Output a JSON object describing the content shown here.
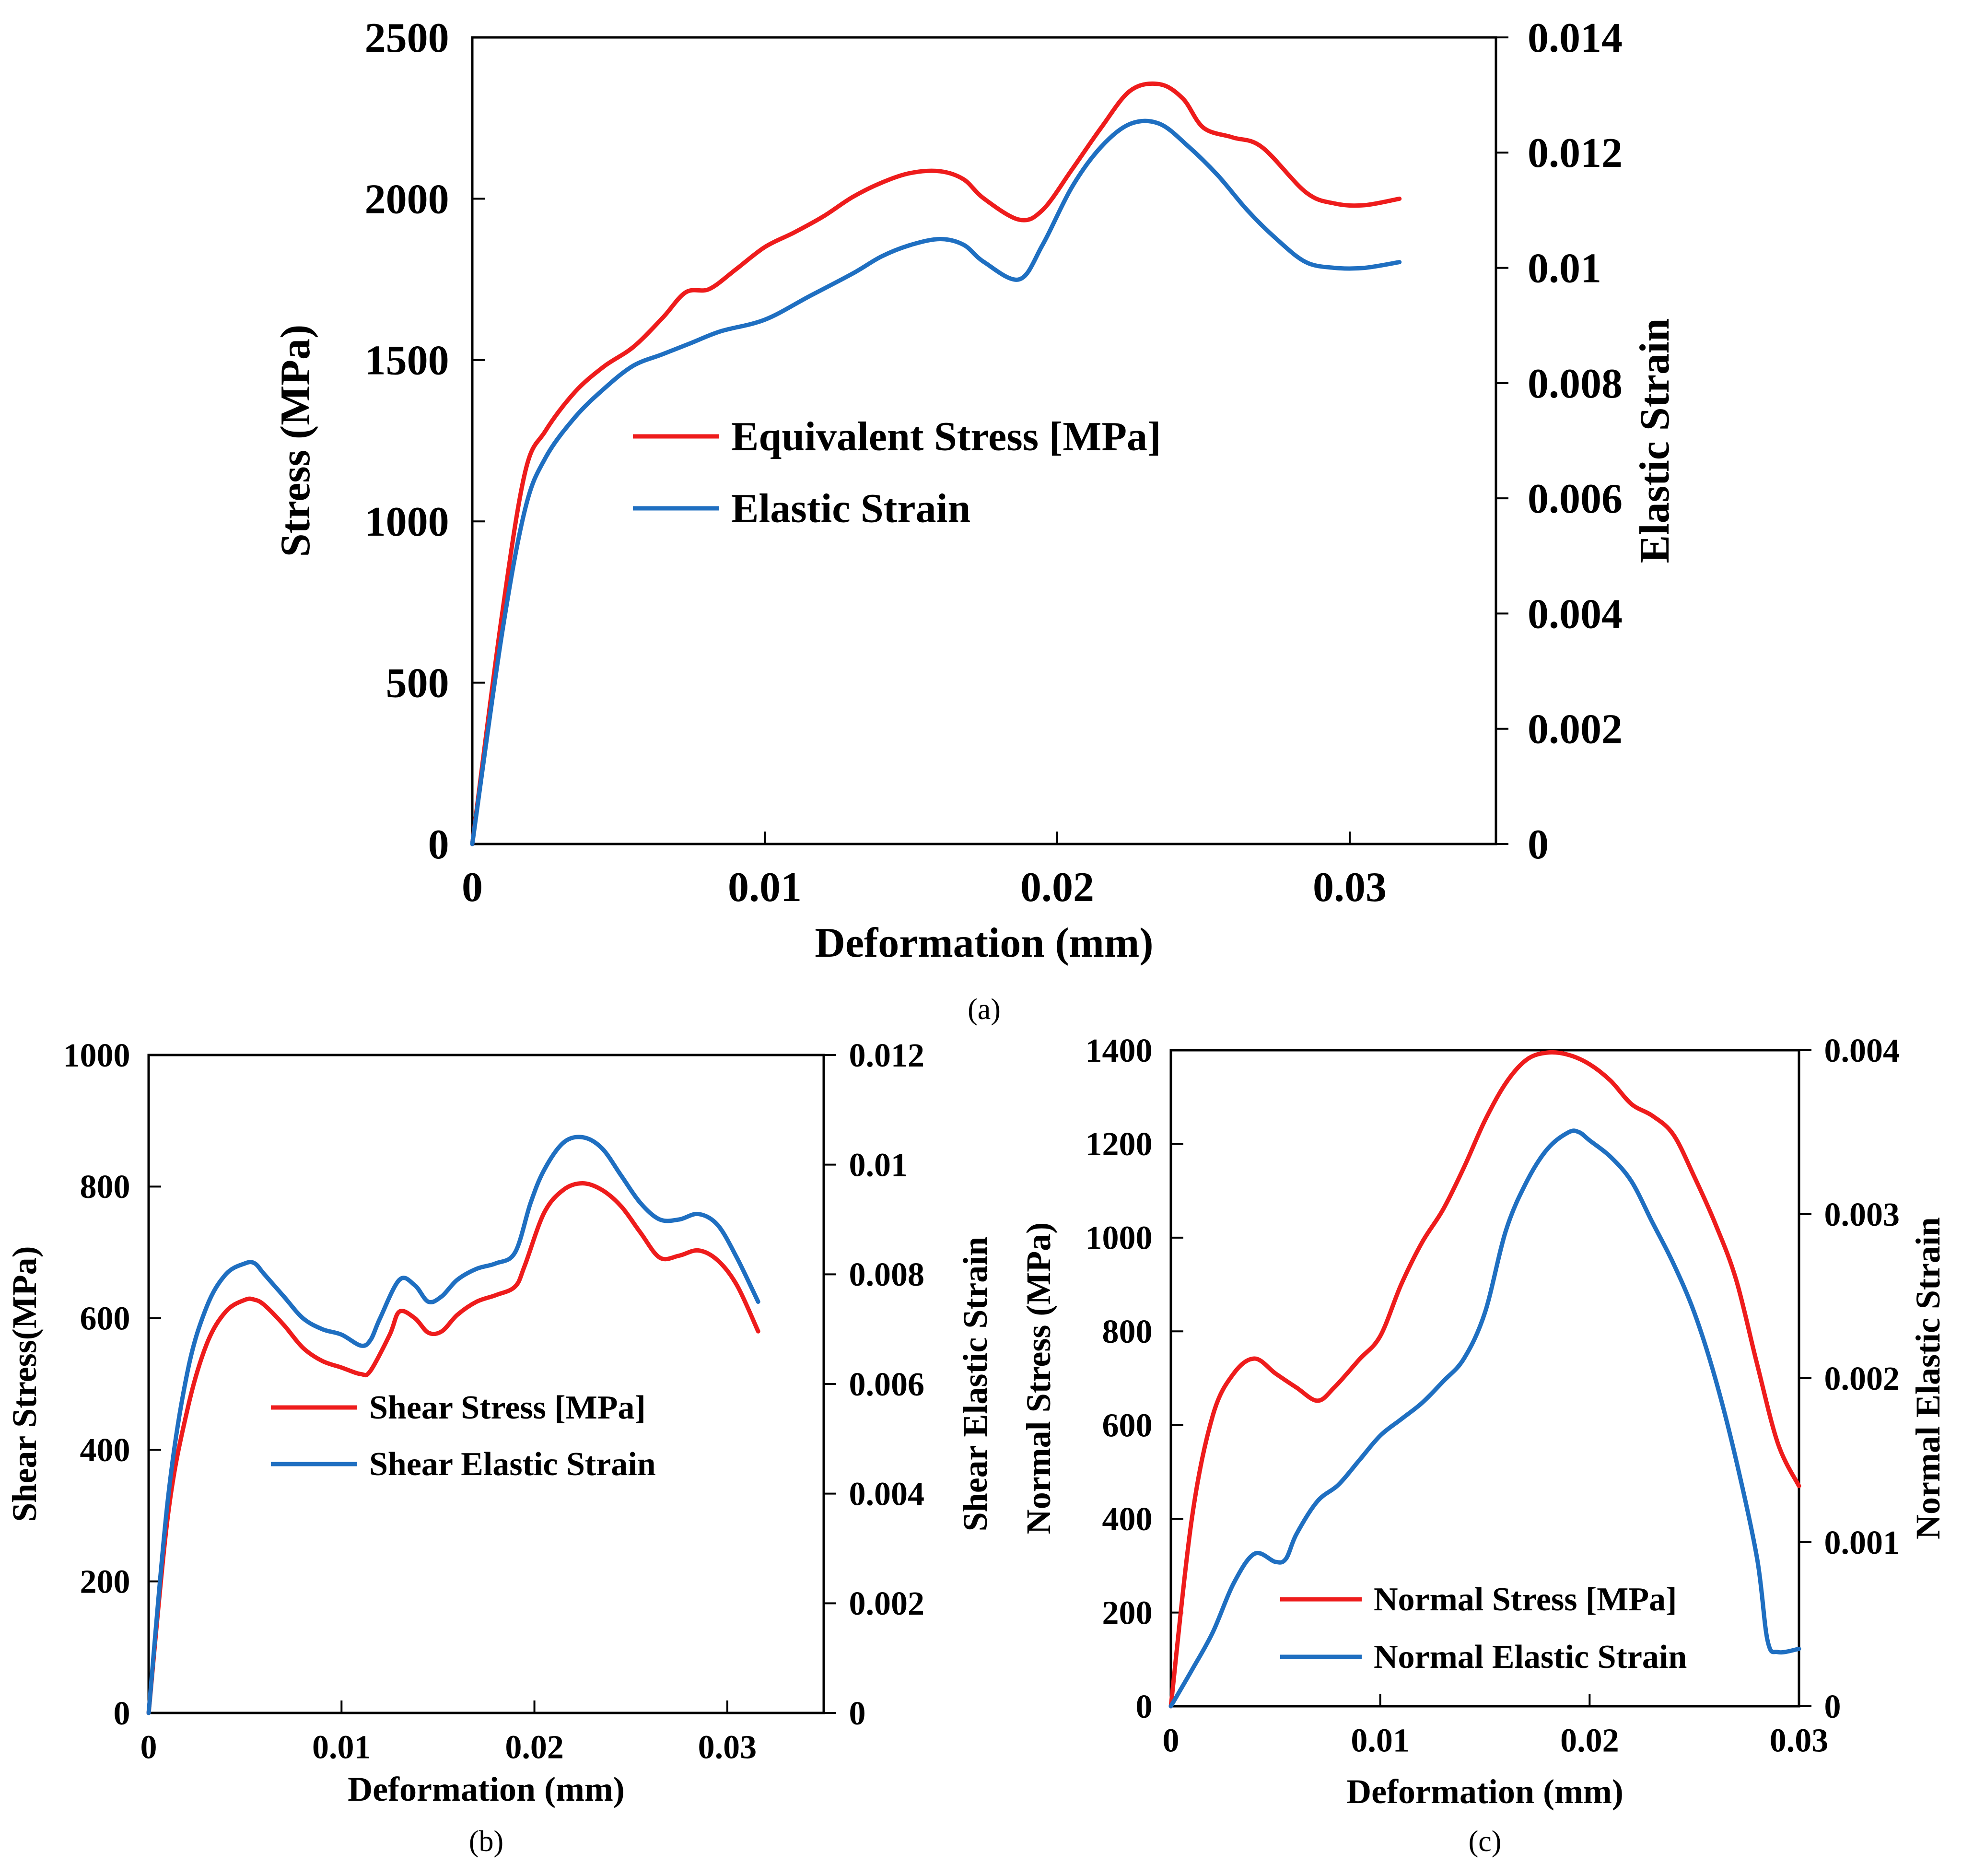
{
  "chart_data": [
    {
      "id": "a",
      "type": "line",
      "caption": "(a)",
      "xlabel": "Deformation (mm)",
      "ylabel": "Stress (MPa)",
      "y2label": "Elastic Strain",
      "xlim": [
        0,
        0.035
      ],
      "ylim": [
        0,
        2500
      ],
      "y2lim": [
        0,
        0.014
      ],
      "xticks": [
        0,
        0.01,
        0.02,
        0.03
      ],
      "xtick_labels": [
        "0",
        "0.01",
        "0.02",
        "0.03"
      ],
      "yticks": [
        0,
        500,
        1000,
        1500,
        2000,
        2500
      ],
      "ytick_labels": [
        "0",
        "500",
        "1000",
        "1500",
        "2000",
        "2500"
      ],
      "y2ticks": [
        0,
        0.002,
        0.004,
        0.006,
        0.008,
        0.01,
        0.012,
        0.014
      ],
      "y2tick_labels": [
        "0",
        "0.002",
        "0.004",
        "0.006",
        "0.008",
        "0.01",
        "0.012",
        "0.014"
      ],
      "legend_position": "center",
      "series": [
        {
          "name": "Equivalent Stress [MPa]",
          "axis": "left",
          "color": "#ee1c1c",
          "points": [
            [
              0,
              0
            ],
            [
              0.001,
              700
            ],
            [
              0.0018,
              1150
            ],
            [
              0.0025,
              1280
            ],
            [
              0.0035,
              1400
            ],
            [
              0.0045,
              1480
            ],
            [
              0.0055,
              1540
            ],
            [
              0.0065,
              1630
            ],
            [
              0.0073,
              1710
            ],
            [
              0.0081,
              1720
            ],
            [
              0.009,
              1780
            ],
            [
              0.01,
              1850
            ],
            [
              0.011,
              1895
            ],
            [
              0.012,
              1945
            ],
            [
              0.013,
              2005
            ],
            [
              0.014,
              2050
            ],
            [
              0.015,
              2080
            ],
            [
              0.016,
              2085
            ],
            [
              0.0168,
              2060
            ],
            [
              0.0175,
              2000
            ],
            [
              0.0187,
              1935
            ],
            [
              0.0195,
              1965
            ],
            [
              0.0205,
              2090
            ],
            [
              0.0215,
              2220
            ],
            [
              0.0225,
              2335
            ],
            [
              0.0235,
              2355
            ],
            [
              0.0243,
              2310
            ],
            [
              0.025,
              2220
            ],
            [
              0.026,
              2190
            ],
            [
              0.027,
              2160
            ],
            [
              0.0285,
              2020
            ],
            [
              0.0295,
              1985
            ],
            [
              0.0305,
              1980
            ],
            [
              0.0317,
              2000
            ]
          ]
        },
        {
          "name": "Elastic Strain",
          "axis": "right",
          "color": "#1f6fc1",
          "points": [
            [
              0,
              0
            ],
            [
              0.001,
              0.0036
            ],
            [
              0.0018,
              0.0058
            ],
            [
              0.0025,
              0.0067
            ],
            [
              0.0035,
              0.0074
            ],
            [
              0.0045,
              0.0079
            ],
            [
              0.0055,
              0.0083
            ],
            [
              0.0065,
              0.0085
            ],
            [
              0.0075,
              0.0087
            ],
            [
              0.0085,
              0.0089
            ],
            [
              0.01,
              0.0091
            ],
            [
              0.0115,
              0.0095
            ],
            [
              0.013,
              0.0099
            ],
            [
              0.014,
              0.0102
            ],
            [
              0.015,
              0.0104
            ],
            [
              0.016,
              0.0105
            ],
            [
              0.0168,
              0.0104
            ],
            [
              0.0175,
              0.0101
            ],
            [
              0.0187,
              0.0098
            ],
            [
              0.0195,
              0.0104
            ],
            [
              0.0205,
              0.0114
            ],
            [
              0.0215,
              0.0121
            ],
            [
              0.0225,
              0.0125
            ],
            [
              0.0235,
              0.0125
            ],
            [
              0.0245,
              0.0121
            ],
            [
              0.0255,
              0.0116
            ],
            [
              0.0265,
              0.011
            ],
            [
              0.0275,
              0.0105
            ],
            [
              0.0285,
              0.0101
            ],
            [
              0.0295,
              0.01
            ],
            [
              0.0305,
              0.01
            ],
            [
              0.0317,
              0.0101
            ]
          ]
        }
      ]
    },
    {
      "id": "b",
      "type": "line",
      "caption": "(b)",
      "xlabel": "Deformation (mm)",
      "ylabel": "Shear Stress(MPa)",
      "y2label": "Shear Elastic Strain",
      "xlim": [
        0,
        0.035
      ],
      "ylim": [
        0,
        1000
      ],
      "y2lim": [
        0,
        0.012
      ],
      "xticks": [
        0,
        0.01,
        0.02,
        0.03
      ],
      "xtick_labels": [
        "0",
        "0.01",
        "0.02",
        "0.03"
      ],
      "yticks": [
        0,
        200,
        400,
        600,
        800,
        1000
      ],
      "ytick_labels": [
        "0",
        "200",
        "400",
        "600",
        "800",
        "1000"
      ],
      "y2ticks": [
        0,
        0.002,
        0.004,
        0.006,
        0.008,
        0.01,
        0.012
      ],
      "y2tick_labels": [
        "0",
        "0.002",
        "0.004",
        "0.006",
        "0.008",
        "0.01",
        "0.012"
      ],
      "legend_position": "center",
      "series": [
        {
          "name": "Shear Stress [MPa]",
          "axis": "left",
          "color": "#ee1c1c",
          "points": [
            [
              0,
              0
            ],
            [
              0.001,
              300
            ],
            [
              0.002,
              460
            ],
            [
              0.003,
              560
            ],
            [
              0.004,
              610
            ],
            [
              0.005,
              628
            ],
            [
              0.0055,
              628
            ],
            [
              0.006,
              620
            ],
            [
              0.007,
              590
            ],
            [
              0.008,
              555
            ],
            [
              0.009,
              535
            ],
            [
              0.01,
              525
            ],
            [
              0.011,
              515
            ],
            [
              0.0115,
              520
            ],
            [
              0.0125,
              575
            ],
            [
              0.013,
              610
            ],
            [
              0.0138,
              600
            ],
            [
              0.0145,
              578
            ],
            [
              0.0152,
              580
            ],
            [
              0.016,
              605
            ],
            [
              0.017,
              625
            ],
            [
              0.018,
              635
            ],
            [
              0.019,
              648
            ],
            [
              0.0195,
              680
            ],
            [
              0.0205,
              760
            ],
            [
              0.0215,
              795
            ],
            [
              0.0225,
              805
            ],
            [
              0.0235,
              795
            ],
            [
              0.0245,
              770
            ],
            [
              0.0255,
              730
            ],
            [
              0.0265,
              692
            ],
            [
              0.0275,
              695
            ],
            [
              0.0285,
              703
            ],
            [
              0.0295,
              688
            ],
            [
              0.0305,
              650
            ],
            [
              0.0316,
              580
            ]
          ]
        },
        {
          "name": "Shear Elastic Strain",
          "axis": "right",
          "color": "#1f6fc1",
          "points": [
            [
              0,
              0
            ],
            [
              0.001,
              0.0039
            ],
            [
              0.002,
              0.0062
            ],
            [
              0.003,
              0.0074
            ],
            [
              0.004,
              0.008
            ],
            [
              0.005,
              0.0082
            ],
            [
              0.0055,
              0.0082
            ],
            [
              0.006,
              0.008
            ],
            [
              0.007,
              0.0076
            ],
            [
              0.008,
              0.0072
            ],
            [
              0.009,
              0.007
            ],
            [
              0.01,
              0.0069
            ],
            [
              0.011,
              0.0067
            ],
            [
              0.0115,
              0.0068
            ],
            [
              0.012,
              0.0072
            ],
            [
              0.013,
              0.0079
            ],
            [
              0.0138,
              0.0078
            ],
            [
              0.0145,
              0.0075
            ],
            [
              0.0152,
              0.0076
            ],
            [
              0.016,
              0.0079
            ],
            [
              0.017,
              0.0081
            ],
            [
              0.018,
              0.0082
            ],
            [
              0.019,
              0.0084
            ],
            [
              0.0198,
              0.0093
            ],
            [
              0.0205,
              0.0099
            ],
            [
              0.0215,
              0.0104
            ],
            [
              0.0225,
              0.0105
            ],
            [
              0.0235,
              0.0103
            ],
            [
              0.0245,
              0.0098
            ],
            [
              0.0255,
              0.0093
            ],
            [
              0.0265,
              0.009
            ],
            [
              0.0275,
              0.009
            ],
            [
              0.0285,
              0.0091
            ],
            [
              0.0295,
              0.0089
            ],
            [
              0.0305,
              0.0083
            ],
            [
              0.0316,
              0.0075
            ]
          ]
        }
      ]
    },
    {
      "id": "c",
      "type": "line",
      "caption": "(c)",
      "xlabel": "Deformation (mm)",
      "ylabel": "Normal Stress (MPa)",
      "y2label": "Normal Elastic Strain",
      "xlim": [
        0,
        0.03
      ],
      "ylim": [
        0,
        1400
      ],
      "y2lim": [
        0,
        0.004
      ],
      "xticks": [
        0,
        0.01,
        0.02,
        0.03
      ],
      "xtick_labels": [
        "0",
        "0.01",
        "0.02",
        "0.03"
      ],
      "yticks": [
        0,
        200,
        400,
        600,
        800,
        1000,
        1200,
        1400
      ],
      "ytick_labels": [
        "0",
        "200",
        "400",
        "600",
        "800",
        "1000",
        "1200",
        "1400"
      ],
      "y2ticks": [
        0,
        0.001,
        0.002,
        0.003,
        0.004
      ],
      "y2tick_labels": [
        "0",
        "0.001",
        "0.002",
        "0.003",
        "0.004"
      ],
      "legend_position": "bottom-right",
      "series": [
        {
          "name": "Normal Stress [MPa]",
          "axis": "left",
          "color": "#ee1c1c",
          "points": [
            [
              0,
              0
            ],
            [
              0.001,
              400
            ],
            [
              0.002,
              620
            ],
            [
              0.003,
              710
            ],
            [
              0.004,
              742
            ],
            [
              0.005,
              710
            ],
            [
              0.006,
              680
            ],
            [
              0.007,
              652
            ],
            [
              0.0078,
              680
            ],
            [
              0.009,
              740
            ],
            [
              0.01,
              790
            ],
            [
              0.011,
              900
            ],
            [
              0.012,
              990
            ],
            [
              0.013,
              1060
            ],
            [
              0.014,
              1150
            ],
            [
              0.015,
              1250
            ],
            [
              0.016,
              1330
            ],
            [
              0.017,
              1380
            ],
            [
              0.018,
              1395
            ],
            [
              0.019,
              1390
            ],
            [
              0.02,
              1370
            ],
            [
              0.021,
              1335
            ],
            [
              0.022,
              1285
            ],
            [
              0.023,
              1260
            ],
            [
              0.024,
              1220
            ],
            [
              0.025,
              1130
            ],
            [
              0.026,
              1030
            ],
            [
              0.027,
              910
            ],
            [
              0.028,
              730
            ],
            [
              0.029,
              560
            ],
            [
              0.03,
              470
            ]
          ]
        },
        {
          "name": "Normal Elastic Strain",
          "axis": "right",
          "color": "#1f6fc1",
          "points": [
            [
              0,
              0
            ],
            [
              0.001,
              0.00022
            ],
            [
              0.002,
              0.00045
            ],
            [
              0.003,
              0.00075
            ],
            [
              0.004,
              0.00093
            ],
            [
              0.005,
              0.00088
            ],
            [
              0.0055,
              0.0009
            ],
            [
              0.006,
              0.00105
            ],
            [
              0.007,
              0.00125
            ],
            [
              0.008,
              0.00135
            ],
            [
              0.009,
              0.0015
            ],
            [
              0.01,
              0.00165
            ],
            [
              0.011,
              0.00175
            ],
            [
              0.012,
              0.00185
            ],
            [
              0.013,
              0.00198
            ],
            [
              0.014,
              0.00212
            ],
            [
              0.015,
              0.0024
            ],
            [
              0.016,
              0.0029
            ],
            [
              0.017,
              0.0032
            ],
            [
              0.018,
              0.0034
            ],
            [
              0.019,
              0.0035
            ],
            [
              0.0195,
              0.0035
            ],
            [
              0.02,
              0.00345
            ],
            [
              0.021,
              0.00335
            ],
            [
              0.022,
              0.0032
            ],
            [
              0.023,
              0.00295
            ],
            [
              0.024,
              0.0027
            ],
            [
              0.025,
              0.0024
            ],
            [
              0.026,
              0.002
            ],
            [
              0.027,
              0.0015
            ],
            [
              0.028,
              0.0009
            ],
            [
              0.0285,
              0.0004
            ],
            [
              0.029,
              0.00033
            ],
            [
              0.03,
              0.00035
            ]
          ]
        }
      ]
    }
  ]
}
